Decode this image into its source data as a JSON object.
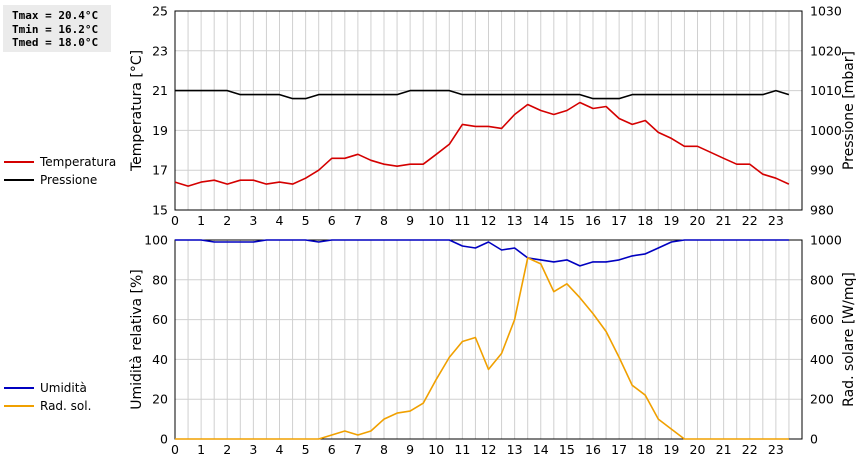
{
  "stats": [
    "Tmax = 20.4°C",
    "Tmin = 16.2°C",
    "Tmed = 18.0°C"
  ],
  "colors": {
    "temperature": "#d40000",
    "pressure": "#000000",
    "humidity": "#0000c0",
    "radiation": "#f0a000",
    "grid": "#d0d0d0"
  },
  "legend_top": [
    {
      "label": "Temperatura",
      "color": "#d40000"
    },
    {
      "label": "Pressione",
      "color": "#000000"
    }
  ],
  "legend_bottom": [
    {
      "label": "Umidità",
      "color": "#0000c0"
    },
    {
      "label": "Rad. sol.",
      "color": "#f0a000"
    }
  ],
  "chart_data": [
    {
      "type": "line",
      "ylabel": "Temperatura [°C]",
      "y2label": "Pressione [mbar]",
      "xlim": [
        0,
        24
      ],
      "ylim": [
        15,
        25
      ],
      "y2lim": [
        980,
        1030
      ],
      "xticks": [
        "0",
        "1",
        "2",
        "3",
        "4",
        "5",
        "6",
        "7",
        "8",
        "9",
        "10",
        "11",
        "12",
        "13",
        "14",
        "15",
        "16",
        "17",
        "18",
        "19",
        "20",
        "21",
        "22",
        "23"
      ],
      "yticks": [
        "15",
        "17",
        "19",
        "21",
        "23",
        "25"
      ],
      "y2ticks": [
        "980",
        "990",
        "1000",
        "1010",
        "1020",
        "1030"
      ],
      "grid": true,
      "series": [
        {
          "name": "Temperatura",
          "axis": "left",
          "x": [
            0,
            0.5,
            1,
            1.5,
            2,
            2.5,
            3,
            3.5,
            4,
            4.5,
            5,
            5.5,
            6,
            6.5,
            7,
            7.5,
            8,
            8.5,
            9,
            9.5,
            10,
            10.5,
            11,
            11.5,
            12,
            12.5,
            13,
            13.5,
            14,
            14.5,
            15,
            15.5,
            16,
            16.5,
            17,
            17.5,
            18,
            18.5,
            19,
            19.5,
            20,
            20.5,
            21,
            21.5,
            22,
            22.5,
            23,
            23.5
          ],
          "y": [
            16.4,
            16.2,
            16.4,
            16.5,
            16.3,
            16.5,
            16.5,
            16.3,
            16.4,
            16.3,
            16.6,
            17.0,
            17.6,
            17.6,
            17.8,
            17.5,
            17.3,
            17.2,
            17.3,
            17.3,
            17.8,
            18.3,
            19.3,
            19.2,
            19.2,
            19.1,
            19.8,
            20.3,
            20.0,
            19.8,
            20.0,
            20.4,
            20.1,
            20.2,
            19.6,
            19.3,
            19.5,
            18.9,
            18.6,
            18.2,
            18.2,
            17.9,
            17.6,
            17.3,
            17.3,
            16.8,
            16.6,
            16.3
          ]
        },
        {
          "name": "Pressione",
          "axis": "right",
          "x": [
            0,
            1,
            2,
            2.5,
            3,
            4,
            4.5,
            5,
            5.5,
            6,
            7,
            8,
            8.5,
            9,
            10,
            10.5,
            11,
            12,
            13,
            14,
            15,
            15.5,
            16,
            17,
            17.5,
            18,
            19,
            20,
            21,
            22,
            22.5,
            23,
            23.5
          ],
          "y": [
            1010,
            1010,
            1010,
            1009,
            1009,
            1009,
            1008,
            1008,
            1009,
            1009,
            1009,
            1009,
            1009,
            1010,
            1010,
            1010,
            1009,
            1009,
            1009,
            1009,
            1009,
            1009,
            1008,
            1008,
            1009,
            1009,
            1009,
            1009,
            1009,
            1009,
            1009,
            1010,
            1009
          ]
        }
      ]
    },
    {
      "type": "line",
      "ylabel": "Umidità relativa [%]",
      "y2label": "Rad. solare [W/mq]",
      "xlim": [
        0,
        24
      ],
      "ylim": [
        0,
        100
      ],
      "y2lim": [
        0,
        1000
      ],
      "xticks": [
        "0",
        "1",
        "2",
        "3",
        "4",
        "5",
        "6",
        "7",
        "8",
        "9",
        "10",
        "11",
        "12",
        "13",
        "14",
        "15",
        "16",
        "17",
        "18",
        "19",
        "20",
        "21",
        "22",
        "23"
      ],
      "yticks": [
        "0",
        "20",
        "40",
        "60",
        "80",
        "100"
      ],
      "y2ticks": [
        "0",
        "200",
        "400",
        "600",
        "800",
        "1000"
      ],
      "grid": true,
      "series": [
        {
          "name": "Umidità",
          "axis": "left",
          "x": [
            0,
            1,
            1.5,
            2,
            2.5,
            3,
            3.5,
            4,
            5,
            5.5,
            6,
            6.5,
            7,
            8,
            9,
            10,
            10.5,
            11,
            11.5,
            12,
            12.5,
            13,
            13.5,
            14,
            14.5,
            15,
            15.5,
            16,
            16.5,
            17,
            17.5,
            18,
            18.5,
            19,
            19.5,
            20,
            21,
            22,
            23,
            23.5
          ],
          "y": [
            100,
            100,
            99,
            99,
            99,
            99,
            100,
            100,
            100,
            99,
            100,
            100,
            100,
            100,
            100,
            100,
            100,
            97,
            96,
            99,
            95,
            96,
            91,
            90,
            89,
            90,
            87,
            89,
            89,
            90,
            92,
            93,
            96,
            99,
            100,
            100,
            100,
            100,
            100,
            100
          ]
        },
        {
          "name": "Rad. sol.",
          "axis": "right",
          "x": [
            0,
            1,
            2,
            3,
            4,
            5,
            5.5,
            6,
            6.5,
            7,
            7.5,
            8,
            8.5,
            9,
            9.5,
            10,
            10.5,
            11,
            11.5,
            12,
            12.5,
            13,
            13.5,
            14,
            14.5,
            15,
            15.5,
            16,
            16.5,
            17,
            17.5,
            18,
            18.5,
            19,
            19.5,
            20,
            21,
            22,
            23,
            23.5
          ],
          "y": [
            0,
            0,
            0,
            0,
            0,
            0,
            0,
            20,
            40,
            20,
            40,
            100,
            130,
            140,
            180,
            300,
            410,
            490,
            510,
            350,
            430,
            600,
            910,
            880,
            740,
            780,
            710,
            630,
            540,
            410,
            270,
            220,
            100,
            50,
            0,
            0,
            0,
            0,
            0,
            0
          ]
        }
      ]
    }
  ]
}
